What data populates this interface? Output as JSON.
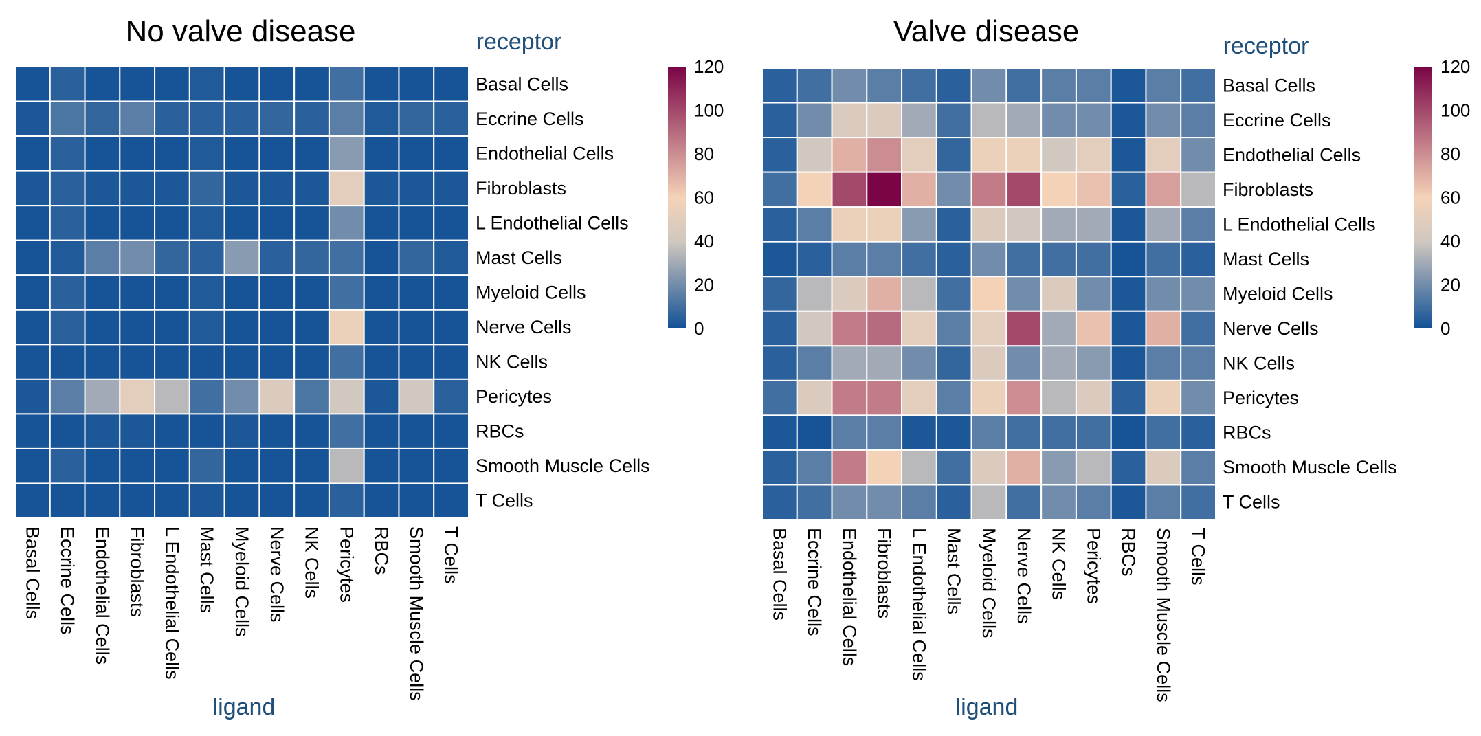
{
  "chart_data": [
    {
      "type": "heatmap",
      "title": "No valve disease",
      "xlabel": "ligand",
      "ylabel": "receptor",
      "rows": [
        "Basal Cells",
        "Eccrine Cells",
        "Endothelial Cells",
        "Fibroblasts",
        "L Endothelial Cells",
        "Mast Cells",
        "Myeloid Cells",
        "Nerve Cells",
        "NK Cells",
        "Pericytes",
        "RBCs",
        "Smooth Muscle Cells",
        "T Cells"
      ],
      "columns": [
        "Basal Cells",
        "Eccrine Cells",
        "Endothelial Cells",
        "Fibroblasts",
        "L Endothelial Cells",
        "Mast Cells",
        "Myeloid Cells",
        "Nerve Cells",
        "NK Cells",
        "Pericytes",
        "RBCs",
        "Smooth Muscle Cells",
        "T Cells"
      ],
      "values": [
        [
          1,
          5,
          1,
          1,
          1,
          3,
          1,
          1,
          1,
          10,
          1,
          1,
          1
        ],
        [
          2,
          12,
          7,
          15,
          5,
          5,
          5,
          7,
          5,
          15,
          3,
          7,
          5
        ],
        [
          1,
          5,
          1,
          1,
          1,
          3,
          1,
          1,
          1,
          25,
          1,
          1,
          1
        ],
        [
          2,
          5,
          2,
          2,
          2,
          7,
          2,
          2,
          2,
          50,
          2,
          2,
          2
        ],
        [
          1,
          5,
          1,
          1,
          1,
          3,
          1,
          1,
          1,
          20,
          1,
          1,
          1
        ],
        [
          1,
          3,
          15,
          20,
          7,
          5,
          25,
          5,
          7,
          10,
          1,
          7,
          3
        ],
        [
          1,
          5,
          1,
          1,
          1,
          3,
          1,
          1,
          1,
          10,
          1,
          1,
          1
        ],
        [
          1,
          5,
          1,
          1,
          1,
          3,
          1,
          1,
          1,
          55,
          1,
          1,
          1
        ],
        [
          1,
          1,
          1,
          1,
          1,
          1,
          1,
          1,
          1,
          10,
          1,
          1,
          1
        ],
        [
          2,
          15,
          30,
          50,
          35,
          10,
          20,
          45,
          12,
          40,
          2,
          40,
          5
        ],
        [
          1,
          1,
          2,
          2,
          1,
          1,
          2,
          1,
          1,
          10,
          1,
          1,
          1
        ],
        [
          1,
          5,
          1,
          1,
          1,
          7,
          1,
          1,
          1,
          35,
          1,
          1,
          1
        ],
        [
          1,
          1,
          1,
          1,
          1,
          2,
          1,
          1,
          1,
          5,
          1,
          1,
          1
        ]
      ],
      "colorbar": {
        "ticks": [
          0,
          20,
          40,
          60,
          80,
          100,
          120
        ],
        "range": [
          0,
          120
        ],
        "colors": [
          "#125196",
          "#d1c8c0",
          "#f4d2b8",
          "#7a0445"
        ]
      }
    },
    {
      "type": "heatmap",
      "title": "Valve disease",
      "xlabel": "ligand",
      "ylabel": "receptor",
      "rows": [
        "Basal Cells",
        "Eccrine Cells",
        "Endothelial Cells",
        "Fibroblasts",
        "L Endothelial Cells",
        "Mast Cells",
        "Myeloid Cells",
        "Nerve Cells",
        "NK Cells",
        "Pericytes",
        "RBCs",
        "Smooth Muscle Cells",
        "T Cells"
      ],
      "columns": [
        "Basal Cells",
        "Eccrine Cells",
        "Endothelial Cells",
        "Fibroblasts",
        "L Endothelial Cells",
        "Mast Cells",
        "Myeloid Cells",
        "Nerve Cells",
        "NK Cells",
        "Pericytes",
        "RBCs",
        "Smooth Muscle Cells",
        "T Cells"
      ],
      "values": [
        [
          5,
          10,
          20,
          15,
          10,
          5,
          20,
          10,
          15,
          15,
          2,
          15,
          10
        ],
        [
          5,
          20,
          45,
          45,
          30,
          10,
          35,
          30,
          20,
          20,
          2,
          20,
          15
        ],
        [
          5,
          40,
          70,
          80,
          50,
          7,
          55,
          55,
          40,
          50,
          2,
          50,
          20
        ],
        [
          10,
          60,
          100,
          120,
          70,
          20,
          85,
          100,
          60,
          65,
          5,
          75,
          35
        ],
        [
          5,
          15,
          55,
          55,
          25,
          5,
          45,
          40,
          30,
          30,
          2,
          30,
          15
        ],
        [
          2,
          5,
          15,
          15,
          10,
          5,
          20,
          10,
          10,
          10,
          1,
          10,
          5
        ],
        [
          7,
          35,
          45,
          70,
          35,
          10,
          60,
          20,
          45,
          20,
          2,
          20,
          20
        ],
        [
          5,
          40,
          85,
          90,
          50,
          15,
          50,
          100,
          30,
          65,
          2,
          70,
          10
        ],
        [
          5,
          15,
          30,
          30,
          20,
          7,
          45,
          20,
          30,
          25,
          2,
          15,
          15
        ],
        [
          10,
          45,
          85,
          85,
          50,
          15,
          55,
          80,
          35,
          45,
          5,
          55,
          20
        ],
        [
          2,
          1,
          15,
          15,
          2,
          2,
          15,
          10,
          10,
          10,
          1,
          10,
          5
        ],
        [
          5,
          15,
          85,
          60,
          35,
          10,
          45,
          70,
          25,
          35,
          5,
          45,
          15
        ],
        [
          5,
          10,
          20,
          20,
          15,
          5,
          35,
          10,
          20,
          15,
          2,
          15,
          10
        ]
      ],
      "colorbar": {
        "ticks": [
          0,
          20,
          40,
          60,
          80,
          100,
          120
        ],
        "range": [
          0,
          120
        ],
        "colors": [
          "#125196",
          "#d1c8c0",
          "#f4d2b8",
          "#7a0445"
        ]
      }
    }
  ]
}
